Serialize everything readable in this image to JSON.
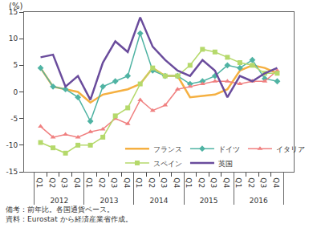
{
  "chart_data": {
    "type": "line",
    "y_label": "(%)",
    "notes": [
      "備考：前年比。各国通貨ベース。",
      "資料：Eurostat から経済産業省作成。"
    ],
    "categories": [
      [
        "2012",
        "Q1"
      ],
      [
        "2012",
        "Q2"
      ],
      [
        "2012",
        "Q3"
      ],
      [
        "2012",
        "Q4"
      ],
      [
        "2013",
        "Q1"
      ],
      [
        "2013",
        "Q2"
      ],
      [
        "2013",
        "Q3"
      ],
      [
        "2013",
        "Q4"
      ],
      [
        "2014",
        "Q1"
      ],
      [
        "2014",
        "Q2"
      ],
      [
        "2014",
        "Q3"
      ],
      [
        "2014",
        "Q4"
      ],
      [
        "2015",
        "Q1"
      ],
      [
        "2015",
        "Q2"
      ],
      [
        "2015",
        "Q3"
      ],
      [
        "2015",
        "Q4"
      ],
      [
        "2016",
        "Q1"
      ],
      [
        "2016",
        "Q2"
      ],
      [
        "2016",
        "Q3"
      ],
      [
        "2016",
        "Q4"
      ]
    ],
    "series": [
      {
        "name": "フランス",
        "color": "#f5b041",
        "marker": "none",
        "values": [
          4.5,
          1,
          0.5,
          0,
          -2,
          -0.5,
          0,
          0.5,
          1.5,
          4.5,
          3,
          3,
          -1,
          -0.8,
          -0.5,
          0.5,
          4,
          5,
          4.5,
          3.5
        ]
      },
      {
        "name": "ドイツ",
        "color": "#4fb3a3",
        "marker": "diamond",
        "values": [
          4.5,
          1,
          0.5,
          -1,
          -5.5,
          1,
          2,
          3,
          11,
          4,
          3,
          3,
          1.5,
          2,
          3,
          5,
          4.5,
          6,
          2.5,
          2
        ]
      },
      {
        "name": "イタリア",
        "color": "#f08080",
        "marker": "triangle-up",
        "values": [
          -6.5,
          -8.5,
          -8,
          -8.5,
          -7.5,
          -7,
          -5,
          -6,
          -1.5,
          -3.5,
          -2.5,
          0.5,
          1,
          1.5,
          2,
          2,
          1.5,
          2,
          2,
          4
        ]
      },
      {
        "name": "スペイン",
        "color": "#b5d96b",
        "marker": "square",
        "values": [
          -9.5,
          -10.5,
          -11.5,
          -10,
          -10,
          -8.5,
          -4.5,
          -3,
          1.5,
          4.5,
          3,
          3,
          5,
          8,
          7.5,
          6.5,
          5.5,
          5,
          3.5,
          3.5
        ]
      },
      {
        "name": "英国",
        "color": "#6a4c9c",
        "marker": "none",
        "values": [
          6.5,
          7,
          1,
          3,
          -1.5,
          5.5,
          9.5,
          7.5,
          14,
          8.5,
          6,
          4,
          3,
          6,
          4,
          -1,
          3,
          2,
          3.5,
          4.5
        ]
      }
    ],
    "ylim": [
      -15,
      15
    ],
    "yticks": [
      -15,
      -10,
      -5,
      0,
      5,
      10,
      15
    ],
    "grid": false,
    "legend": "bottom"
  }
}
